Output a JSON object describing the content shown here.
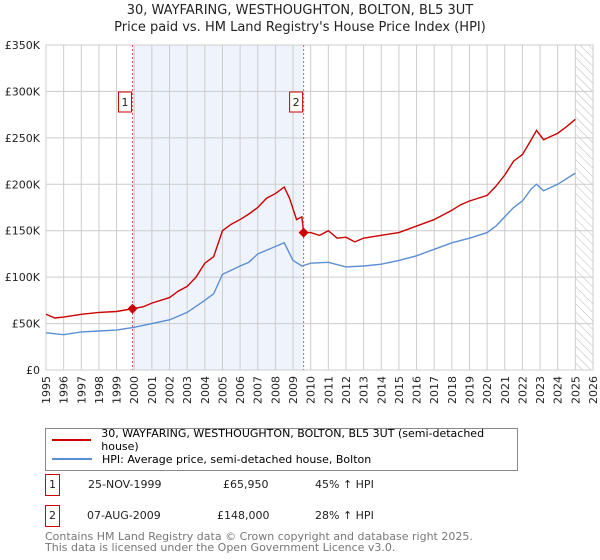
{
  "chart_data": {
    "type": "line",
    "title": "30, WAYFARING, WESTHOUGHTON, BOLTON, BL5 3UT",
    "subtitle": "Price paid vs. HM Land Registry's House Price Index (HPI)",
    "xlim": [
      1995,
      2026
    ],
    "ylim": [
      0,
      350000
    ],
    "x_ticks": [
      "1995",
      "1996",
      "1997",
      "1998",
      "1999",
      "2000",
      "2001",
      "2002",
      "2003",
      "2004",
      "2005",
      "2006",
      "2007",
      "2008",
      "2009",
      "2010",
      "2011",
      "2012",
      "2013",
      "2014",
      "2015",
      "2016",
      "2017",
      "2018",
      "2019",
      "2020",
      "2021",
      "2022",
      "2023",
      "2024",
      "2025",
      "2026"
    ],
    "y_ticks": [
      {
        "v": 0,
        "label": "£0"
      },
      {
        "v": 50000,
        "label": "£50K"
      },
      {
        "v": 100000,
        "label": "£100K"
      },
      {
        "v": 150000,
        "label": "£150K"
      },
      {
        "v": 200000,
        "label": "£200K"
      },
      {
        "v": 250000,
        "label": "£250K"
      },
      {
        "v": 300000,
        "label": "£300K"
      },
      {
        "v": 350000,
        "label": "£350K"
      }
    ],
    "grid": true,
    "shaded_range": [
      1999.9,
      2009.6
    ],
    "hatched_from": 2025.0,
    "series": [
      {
        "name": "30, WAYFARING, WESTHOUGHTON, BOLTON, BL5 3UT (semi-detached house)",
        "color": "#cc0000",
        "x": [
          1995,
          1995.5,
          1996,
          1997,
          1998,
          1999,
          1999.9,
          2000.5,
          2001,
          2002,
          2002.5,
          2003,
          2003.5,
          2004,
          2004.5,
          2005,
          2005.5,
          2006,
          2006.5,
          2007,
          2007.5,
          2008,
          2008.5,
          2008.8,
          2009.2,
          2009.5,
          2009.6,
          2010,
          2010.5,
          2011,
          2011.5,
          2012,
          2012.5,
          2013,
          2014,
          2015,
          2016,
          2017,
          2018,
          2018.5,
          2019,
          2020,
          2020.5,
          2021,
          2021.5,
          2022,
          2022.5,
          2022.8,
          2023.2,
          2024,
          2024.5,
          2025
        ],
        "y": [
          60000,
          56000,
          57000,
          60000,
          62000,
          63000,
          66000,
          68000,
          72000,
          78000,
          85000,
          90000,
          100000,
          115000,
          122000,
          150000,
          157000,
          162000,
          168000,
          175000,
          185000,
          190000,
          197000,
          185000,
          162000,
          165000,
          148000,
          148000,
          145000,
          150000,
          142000,
          143000,
          138000,
          142000,
          145000,
          148000,
          155000,
          162000,
          172000,
          178000,
          182000,
          188000,
          198000,
          210000,
          225000,
          232000,
          248000,
          258000,
          248000,
          255000,
          262000,
          270000
        ]
      },
      {
        "name": "HPI: Average price, semi-detached house, Bolton",
        "color": "#5b8fd4",
        "x": [
          1995,
          1996,
          1997,
          1998,
          1999,
          2000,
          2001,
          2002,
          2003,
          2004,
          2004.5,
          2005,
          2006,
          2006.5,
          2007,
          2007.5,
          2008,
          2008.5,
          2009,
          2009.5,
          2010,
          2011,
          2012,
          2013,
          2014,
          2015,
          2016,
          2017,
          2018,
          2019,
          2020,
          2020.5,
          2021,
          2021.5,
          2022,
          2022.5,
          2022.8,
          2023.2,
          2024,
          2025
        ],
        "y": [
          40000,
          38000,
          41000,
          42000,
          43000,
          46000,
          50000,
          54000,
          62000,
          75000,
          82000,
          103000,
          112000,
          116000,
          125000,
          129000,
          133000,
          137000,
          118000,
          112000,
          115000,
          116000,
          111000,
          112000,
          114000,
          118000,
          123000,
          130000,
          137000,
          142000,
          148000,
          155000,
          165000,
          175000,
          182000,
          195000,
          200000,
          193000,
          200000,
          212000
        ]
      }
    ],
    "sales": [
      {
        "n": "1",
        "x": 1999.9,
        "y": 65950
      },
      {
        "n": "2",
        "x": 2009.6,
        "y": 148000
      }
    ]
  },
  "legend": {
    "red": "30, WAYFARING, WESTHOUGHTON, BOLTON, BL5 3UT (semi-detached house)",
    "blue": "HPI: Average price, semi-detached house, Bolton"
  },
  "transactions": [
    {
      "n": "1",
      "date": "25-NOV-1999",
      "price": "£65,950",
      "hpi": "45% ↑ HPI"
    },
    {
      "n": "2",
      "date": "07-AUG-2009",
      "price": "£148,000",
      "hpi": "28% ↑ HPI"
    }
  ],
  "footer": [
    "Contains HM Land Registry data © Crown copyright and database right 2025.",
    "This data is licensed under the Open Government Licence v3.0."
  ]
}
